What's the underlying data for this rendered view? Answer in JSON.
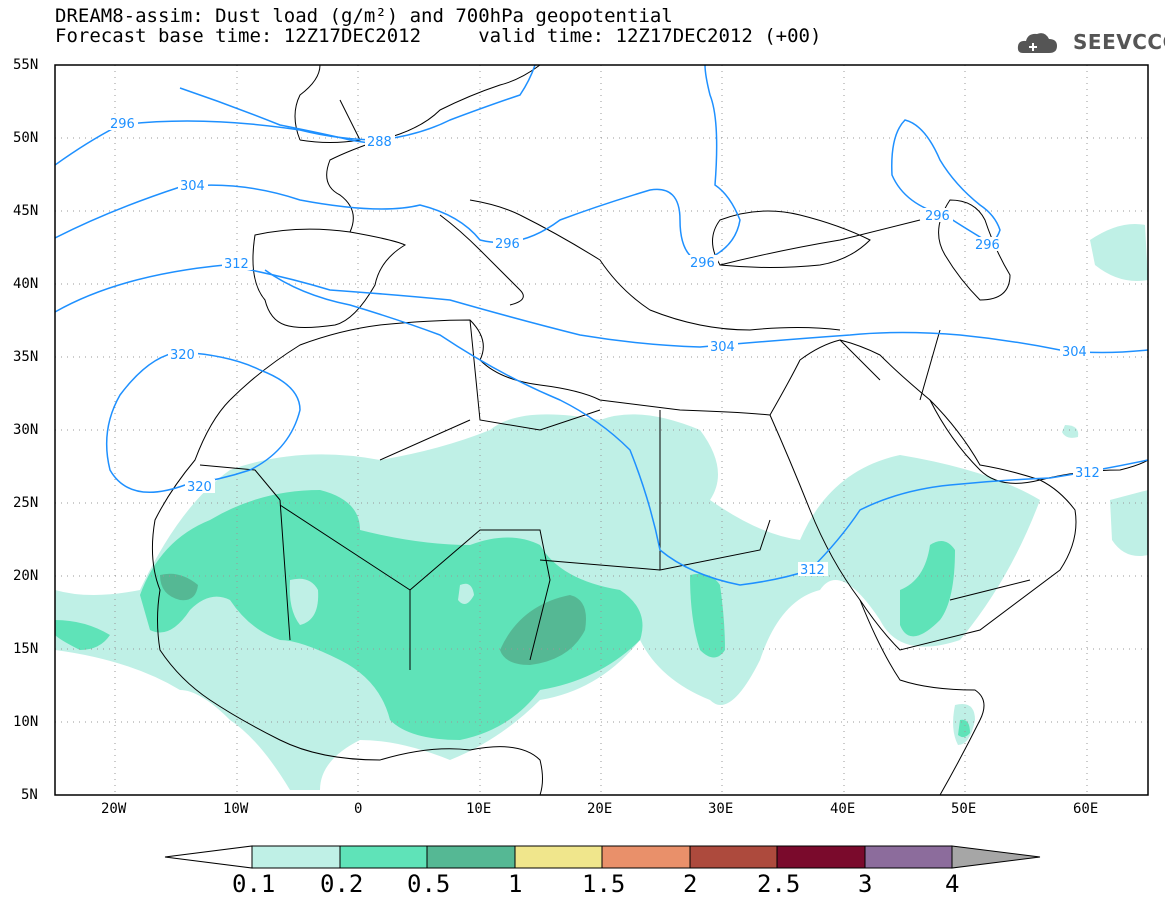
{
  "header": {
    "title_line1": "DREAM8-assim: Dust load (g/m²) and 700hPa geopotential",
    "title_line2": "Forecast base time: 12Z17DEC2012     valid time: 12Z17DEC2012 (+00)",
    "logo_text": "SEEVCCC"
  },
  "map": {
    "lat_labels": [
      "55N",
      "50N",
      "45N",
      "40N",
      "35N",
      "30N",
      "25N",
      "20N",
      "15N",
      "10N",
      "5N"
    ],
    "lon_labels": [
      "20W",
      "10W",
      "0",
      "10E",
      "20E",
      "30E",
      "40E",
      "50E",
      "60E"
    ],
    "extent": {
      "lon_min": -25,
      "lon_max": 65,
      "lat_min": 5,
      "lat_max": 55
    },
    "grid": true,
    "contour_labels": [
      "296",
      "288",
      "304",
      "312",
      "320",
      "296",
      "296",
      "296",
      "296",
      "304",
      "304",
      "312",
      "312",
      "320"
    ]
  },
  "colorbar": {
    "ticks": [
      "0.1",
      "0.2",
      "0.5",
      "1",
      "1.5",
      "2",
      "2.5",
      "3",
      "4"
    ],
    "colors": [
      "#bff0e6",
      "#5fe3b8",
      "#55b894",
      "#f0e68c",
      "#e9906a",
      "#ad4a3d",
      "#7a0a2c",
      "#8c6c9c",
      "#a6a6a6"
    ]
  },
  "styles": {
    "contour_color": "#1e90ff",
    "dust_light": "#bff0e6",
    "dust_mid": "#5fe3b8",
    "dust_dark": "#55b894"
  }
}
